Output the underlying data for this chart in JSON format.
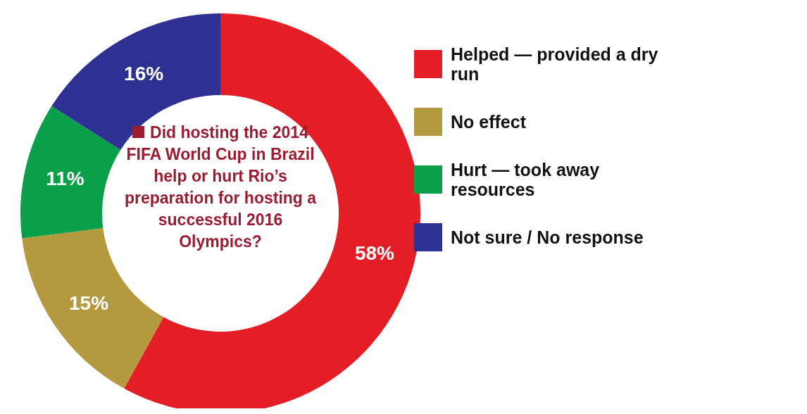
{
  "chart_data": {
    "type": "donut",
    "title": "Did hosting the 2014 FIFA World Cup in Brazil help or hurt Rio’s preparation for hosting a successful 2016 Olympics?",
    "categories": [
      "Helped — provided a dry run",
      "No effect",
      "Hurt — took away resources",
      "Not sure / No response"
    ],
    "values": [
      58,
      15,
      11,
      16
    ],
    "colors": [
      "#e41e26",
      "#b5993e",
      "#0aa04a",
      "#2e3192"
    ],
    "value_labels": [
      "58%",
      "15%",
      "11%",
      "16%"
    ],
    "legend": "right"
  }
}
